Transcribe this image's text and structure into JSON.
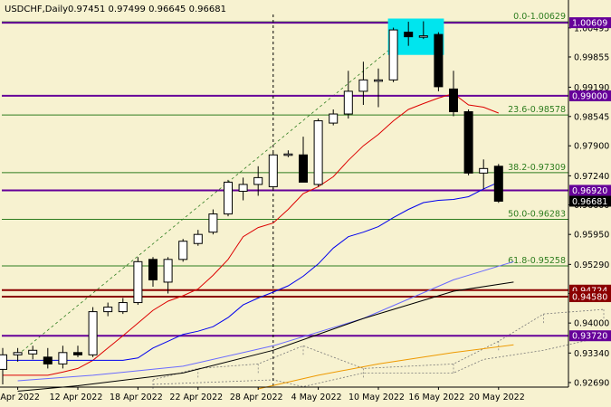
{
  "header": {
    "symbol": "USDCHF,Daily",
    "ohlc": "0.97451 0.97499 0.96645 0.96681"
  },
  "chart_data": {
    "type": "candlestick",
    "symbol": "USDCHF",
    "timeframe": "Daily",
    "y_ticks": [
      "1.00495",
      "0.99855",
      "0.99190",
      "0.98545",
      "0.97900",
      "0.97240",
      "0.96600",
      "0.95950",
      "0.95290",
      "0.94650",
      "0.94000",
      "0.93340",
      "0.92690"
    ],
    "x_labels": [
      "6 Apr 2022",
      "12 Apr 2022",
      "18 Apr 2022",
      "22 Apr 2022",
      "28 Apr 2022",
      "4 May 2022",
      "10 May 2022",
      "16 May 2022",
      "20 May 2022"
    ],
    "x_label_index": [
      1,
      5,
      9,
      13,
      17,
      21,
      25,
      29,
      33
    ],
    "candles": [
      {
        "o": 0.9298,
        "h": 0.9345,
        "l": 0.9265,
        "c": 0.933
      },
      {
        "o": 0.933,
        "h": 0.9345,
        "l": 0.9315,
        "c": 0.9335
      },
      {
        "o": 0.9332,
        "h": 0.935,
        "l": 0.932,
        "c": 0.934
      },
      {
        "o": 0.9325,
        "h": 0.9345,
        "l": 0.93,
        "c": 0.931
      },
      {
        "o": 0.931,
        "h": 0.935,
        "l": 0.93,
        "c": 0.9335
      },
      {
        "o": 0.9335,
        "h": 0.935,
        "l": 0.9325,
        "c": 0.933
      },
      {
        "o": 0.933,
        "h": 0.9435,
        "l": 0.9325,
        "c": 0.9425
      },
      {
        "o": 0.9425,
        "h": 0.9445,
        "l": 0.9415,
        "c": 0.9435
      },
      {
        "o": 0.9425,
        "h": 0.9455,
        "l": 0.942,
        "c": 0.9445
      },
      {
        "o": 0.9445,
        "h": 0.9545,
        "l": 0.944,
        "c": 0.9535
      },
      {
        "o": 0.954,
        "h": 0.9545,
        "l": 0.948,
        "c": 0.9495
      },
      {
        "o": 0.949,
        "h": 0.9545,
        "l": 0.9465,
        "c": 0.954
      },
      {
        "o": 0.954,
        "h": 0.9585,
        "l": 0.9535,
        "c": 0.958
      },
      {
        "o": 0.9575,
        "h": 0.9605,
        "l": 0.957,
        "c": 0.9595
      },
      {
        "o": 0.96,
        "h": 0.965,
        "l": 0.9595,
        "c": 0.964
      },
      {
        "o": 0.964,
        "h": 0.9715,
        "l": 0.9635,
        "c": 0.971
      },
      {
        "o": 0.969,
        "h": 0.972,
        "l": 0.967,
        "c": 0.9705
      },
      {
        "o": 0.9705,
        "h": 0.9745,
        "l": 0.968,
        "c": 0.972
      },
      {
        "o": 0.97,
        "h": 0.9775,
        "l": 0.9695,
        "c": 0.977
      },
      {
        "o": 0.977,
        "h": 0.978,
        "l": 0.9765,
        "c": 0.9772
      },
      {
        "o": 0.977,
        "h": 0.981,
        "l": 0.971,
        "c": 0.971
      },
      {
        "o": 0.9705,
        "h": 0.985,
        "l": 0.97,
        "c": 0.9845
      },
      {
        "o": 0.984,
        "h": 0.987,
        "l": 0.9835,
        "c": 0.986
      },
      {
        "o": 0.986,
        "h": 0.9955,
        "l": 0.985,
        "c": 0.991
      },
      {
        "o": 0.991,
        "h": 0.9975,
        "l": 0.988,
        "c": 0.9935
      },
      {
        "o": 0.9935,
        "h": 0.996,
        "l": 0.9875,
        "c": 0.9935
      },
      {
        "o": 0.9935,
        "h": 1.005,
        "l": 0.993,
        "c": 1.0045
      },
      {
        "o": 1.004,
        "h": 1.0063,
        "l": 1.001,
        "c": 1.003
      },
      {
        "o": 1.003,
        "h": 1.0064,
        "l": 1.0025,
        "c": 1.0032
      },
      {
        "o": 1.0035,
        "h": 1.004,
        "l": 0.991,
        "c": 0.992
      },
      {
        "o": 0.9915,
        "h": 0.9955,
        "l": 0.9855,
        "c": 0.9865
      },
      {
        "o": 0.9865,
        "h": 0.987,
        "l": 0.9725,
        "c": 0.973
      },
      {
        "o": 0.973,
        "h": 0.976,
        "l": 0.9695,
        "c": 0.974
      },
      {
        "o": 0.9745,
        "h": 0.975,
        "l": 0.96645,
        "c": 0.96681
      }
    ],
    "levels": [
      {
        "value": 1.00609,
        "label": "1.00609",
        "color": "#660099"
      },
      {
        "value": 0.99,
        "label": "0.99000",
        "color": "#660099"
      },
      {
        "value": 0.9692,
        "label": "0.96920",
        "color": "#660099"
      },
      {
        "value": 0.96681,
        "label": "0.96681",
        "color": "#000000"
      },
      {
        "value": 0.94724,
        "label": "0.94724",
        "color": "#8b0000"
      },
      {
        "value": 0.9458,
        "label": "0.94580",
        "color": "#8b0000"
      },
      {
        "value": 0.9372,
        "label": "0.93720",
        "color": "#660099"
      }
    ],
    "fibonacci": [
      {
        "value": 1.00629,
        "label": "0.0-1.00629"
      },
      {
        "value": 0.98578,
        "label": "23.6-0.98578"
      },
      {
        "value": 0.97309,
        "label": "38.2-0.97309"
      },
      {
        "value": 0.96283,
        "label": "50.0-0.96283"
      },
      {
        "value": 0.95258,
        "label": "61.8-0.95258"
      }
    ],
    "colors": {
      "background": "#f7f2d0",
      "bull": "#ffffff",
      "bear": "#000000",
      "fib": "#2e7d1f",
      "ma_red": "#dd0000",
      "ma_blue": "#0000ee",
      "ma_lightblue": "#6a6aff",
      "ma_black": "#000000",
      "ma_orange": "#ee9900",
      "ichimoku": "#777777",
      "highlight": "#00e5ee"
    },
    "ma_red": [
      0.9285,
      0.9285,
      0.9285,
      0.9285,
      0.9292,
      0.93,
      0.9318,
      0.9345,
      0.9372,
      0.94,
      0.9428,
      0.9448,
      0.946,
      0.9475,
      0.9505,
      0.954,
      0.959,
      0.961,
      0.962,
      0.965,
      0.9685,
      0.97,
      0.9722,
      0.9758,
      0.979,
      0.9815,
      0.9845,
      0.987,
      0.9883,
      0.9895,
      0.9905,
      0.988,
      0.9875,
      0.9862
    ],
    "ma_blue": [
      0.9318,
      0.9318,
      0.9318,
      0.9318,
      0.9318,
      0.9318,
      0.9318,
      0.9318,
      0.9318,
      0.9323,
      0.9345,
      0.936,
      0.9375,
      0.9382,
      0.9392,
      0.9412,
      0.944,
      0.9455,
      0.9468,
      0.9482,
      0.9503,
      0.953,
      0.9565,
      0.959,
      0.96,
      0.9612,
      0.9632,
      0.965,
      0.9665,
      0.967,
      0.9672,
      0.9678,
      0.9695,
      0.971
    ],
    "ma_lightblue": [
      [
        1,
        0.9273
      ],
      [
        6,
        0.9285
      ],
      [
        12,
        0.9305
      ],
      [
        18,
        0.935
      ],
      [
        24,
        0.941
      ],
      [
        30,
        0.9495
      ],
      [
        34,
        0.9535
      ]
    ],
    "ma_black": [
      [
        1,
        0.925
      ],
      [
        5,
        0.9262
      ],
      [
        12,
        0.929
      ],
      [
        18,
        0.934
      ],
      [
        24,
        0.941
      ],
      [
        30,
        0.947
      ],
      [
        34,
        0.949
      ]
    ],
    "ma_orange": [
      [
        17,
        0.9255
      ],
      [
        21,
        0.9285
      ],
      [
        25,
        0.931
      ],
      [
        30,
        0.9335
      ],
      [
        34,
        0.9352
      ]
    ],
    "cloud_top": [
      [
        10,
        0.9275
      ],
      [
        13,
        0.93
      ],
      [
        17,
        0.931
      ],
      [
        20,
        0.935
      ],
      [
        24,
        0.93
      ],
      [
        30,
        0.931
      ],
      [
        33,
        0.936
      ],
      [
        36,
        0.942
      ],
      [
        40,
        0.943
      ]
    ],
    "cloud_bottom": [
      [
        10,
        0.9265
      ],
      [
        14,
        0.927
      ],
      [
        18,
        0.9275
      ],
      [
        20,
        0.926
      ],
      [
        24,
        0.929
      ],
      [
        30,
        0.929
      ],
      [
        32,
        0.932
      ],
      [
        36,
        0.934
      ],
      [
        40,
        0.937
      ]
    ],
    "fib_line": {
      "from": [
        1,
        0.933
      ],
      "to": [
        28,
        1.0063
      ]
    },
    "highlight_box": {
      "i0": 26,
      "i1": 29,
      "lo": 0.999,
      "hi": 1.007
    },
    "vline_index": 18
  }
}
